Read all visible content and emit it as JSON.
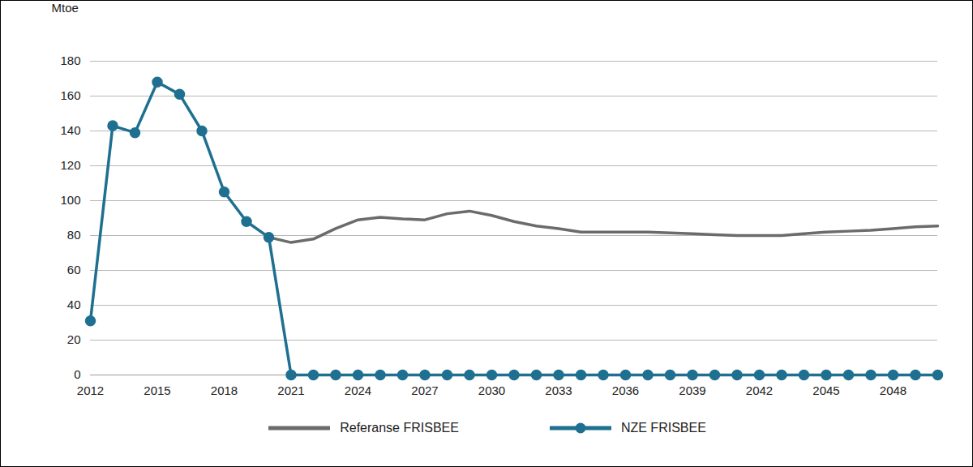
{
  "chart_data": {
    "type": "line",
    "y_label": "Mtoe",
    "x": [
      2012,
      2013,
      2014,
      2015,
      2016,
      2017,
      2018,
      2019,
      2020,
      2021,
      2022,
      2023,
      2024,
      2025,
      2026,
      2027,
      2028,
      2029,
      2030,
      2031,
      2032,
      2033,
      2034,
      2035,
      2036,
      2037,
      2038,
      2039,
      2040,
      2041,
      2042,
      2043,
      2044,
      2045,
      2046,
      2047,
      2048,
      2049,
      2050
    ],
    "series": [
      {
        "name": "Referanse FRISBEE",
        "color": "#6b6b6b",
        "marker": "none",
        "values": [
          null,
          null,
          null,
          null,
          null,
          null,
          null,
          null,
          79,
          76,
          78,
          84,
          89,
          90.5,
          89.5,
          89,
          92.5,
          94,
          91.5,
          88,
          85.5,
          84,
          82,
          82,
          82,
          82,
          81.5,
          81,
          80.5,
          80,
          80,
          80,
          81,
          82,
          82.5,
          83,
          84,
          85,
          85.5
        ]
      },
      {
        "name": "NZE FRISBEE",
        "color": "#1f7090",
        "marker": "circle",
        "values": [
          31,
          143,
          139,
          168,
          161,
          140,
          105,
          88,
          79,
          0,
          0,
          0,
          0,
          0,
          0,
          0,
          0,
          0,
          0,
          0,
          0,
          0,
          0,
          0,
          0,
          0,
          0,
          0,
          0,
          0,
          0,
          0,
          0,
          0,
          0,
          0,
          0,
          0,
          0
        ]
      }
    ],
    "xlim": [
      2012,
      2050
    ],
    "xticks": [
      2012,
      2015,
      2018,
      2021,
      2024,
      2027,
      2030,
      2033,
      2036,
      2039,
      2042,
      2045,
      2048
    ],
    "ylim": [
      0,
      180
    ],
    "yticks": [
      0,
      20,
      40,
      60,
      80,
      100,
      120,
      140,
      160,
      180
    ],
    "grid": true,
    "legend": "bottom"
  }
}
